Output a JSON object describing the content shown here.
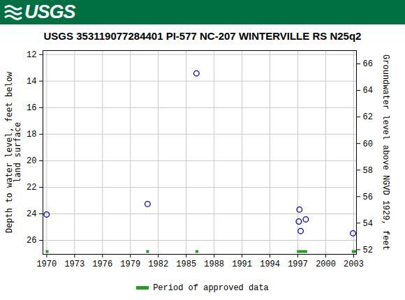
{
  "chart_data": {
    "type": "scatter",
    "logo": "USGS",
    "title": "USGS 353119077284401 PI-577 NC-207 WINTERVILLE RS N25q2",
    "y_label": "Depth to water level, feet below land surface",
    "y2_label": "Groundwater level above NGVD 1929, feet",
    "x": [
      1970.0,
      1980.85,
      1986.1,
      1997.1,
      1997.17,
      1997.3,
      1997.85,
      2002.93
    ],
    "values": [
      24.05,
      23.26,
      13.42,
      24.58,
      23.68,
      25.3,
      24.42,
      25.47
    ],
    "color": "#0000cc",
    "marker": "open_circle",
    "xlim": [
      1969.6,
      2003.3
    ],
    "xticks": [
      1970,
      1973,
      1976,
      1979,
      1982,
      1985,
      1988,
      1991,
      1994,
      1997,
      2000,
      2003
    ],
    "ylim": [
      27.05,
      11.7
    ],
    "yticks": [
      12,
      14,
      16,
      18,
      20,
      22,
      24,
      26
    ],
    "y2lim": [
      51.65,
      67.0
    ],
    "y2ticks": [
      52,
      54,
      56,
      58,
      60,
      62,
      64,
      66
    ],
    "grid": true,
    "legend": "bottom",
    "series": [
      {
        "name": "Period of approved data",
        "color": "#22a022",
        "type": "period",
        "periods": [
          [
            1969.9,
            1970.2
          ],
          [
            1980.7,
            1981.0
          ],
          [
            1986.0,
            1986.3
          ],
          [
            1996.9,
            1998.0
          ],
          [
            2002.8,
            2003.3
          ]
        ]
      }
    ]
  }
}
